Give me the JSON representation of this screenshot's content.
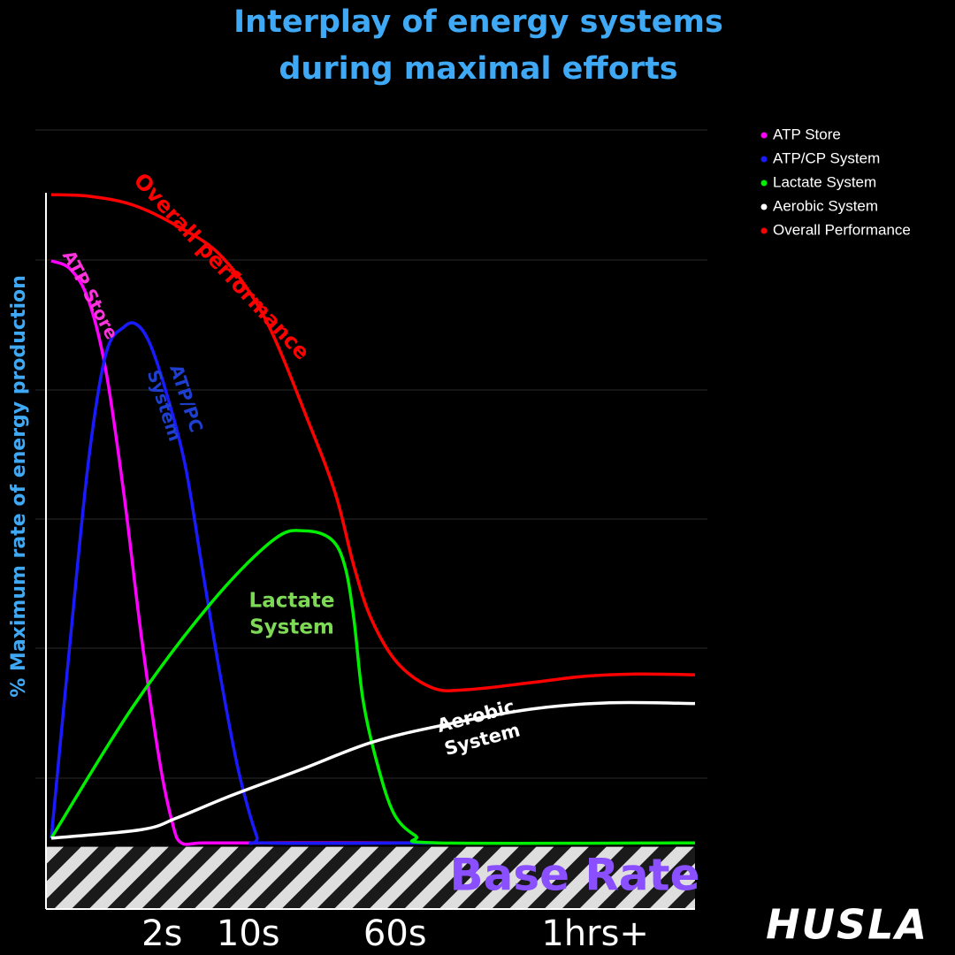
{
  "chart_data": {
    "type": "line",
    "title": [
      "Interplay of energy systems",
      "during maximal efforts"
    ],
    "y_label": "% Maximum rate of energy production",
    "xlim": [
      0,
      100
    ],
    "ylim": [
      0,
      100
    ],
    "xticks": [
      {
        "value": 17.2,
        "label": "2s"
      },
      {
        "value": 30.6,
        "label": "10s"
      },
      {
        "value": 53.4,
        "label": "60s"
      },
      {
        "value": 84.5,
        "label": "1hrs+"
      }
    ],
    "band": {
      "label": "Base Rate",
      "value": 8
    },
    "legend": "top-right",
    "series": [
      {
        "name": "ATP Store",
        "color": "#ff00ff",
        "x": [
          0,
          3.0,
          5.8,
          8.5,
          11.3,
          14.0,
          16.8,
          18.8,
          20.2,
          23.6,
          33.2,
          60.7
        ],
        "values": [
          83.3,
          82.2,
          78.2,
          69.1,
          53.2,
          35.0,
          19.1,
          11.1,
          8.5,
          8.5,
          8.5,
          8.5
        ]
      },
      {
        "name": "ATP/CP System",
        "color": "#1a1aff",
        "x": [
          0,
          3.0,
          5.8,
          8.5,
          11.3,
          13.3,
          15.4,
          18.1,
          20.9,
          23.6,
          26.4,
          29.1,
          31.9,
          33.2,
          60.7
        ],
        "values": [
          9.1,
          35.0,
          57.7,
          71.4,
          74.8,
          75.1,
          72.5,
          65.7,
          56.6,
          43.0,
          29.3,
          17.7,
          9.4,
          8.5,
          8.5
        ]
      },
      {
        "name": "Lactate System",
        "color": "#00ee00",
        "x": [
          0,
          12.6,
          25.0,
          34.6,
          39.4,
          43.5,
          45.6,
          47.0,
          48.4,
          50.5,
          53.2,
          56.6,
          60.0,
          100
        ],
        "values": [
          9.1,
          25.9,
          39.5,
          47.5,
          48.6,
          47.5,
          44.1,
          37.3,
          27.0,
          19.1,
          12.3,
          9.4,
          8.5,
          8.5
        ]
      },
      {
        "name": "Aerobic System",
        "color": "#ffffff",
        "x": [
          0,
          14.0,
          19.5,
          27.7,
          38.7,
          49.7,
          60.7,
          74.6,
          86.8,
          100
        ],
        "values": [
          9.1,
          10.2,
          11.7,
          14.5,
          17.9,
          21.4,
          23.6,
          25.7,
          26.5,
          26.4
        ]
      },
      {
        "name": "Overall Performance",
        "color": "#ff0000",
        "x": [
          0,
          5.8,
          12.6,
          19.5,
          26.4,
          33.2,
          40.1,
          44.2,
          47.0,
          49.7,
          53.8,
          59.3,
          64.8,
          74.6,
          82.7,
          90.9,
          100
        ],
        "values": [
          91.8,
          91.6,
          90.5,
          87.8,
          83.9,
          75.9,
          62.3,
          53.2,
          44.1,
          37.3,
          31.6,
          28.4,
          28.2,
          29.1,
          29.9,
          30.2,
          30.1
        ]
      }
    ],
    "annotations": [
      {
        "lines": [
          "Overall performance"
        ],
        "color": "#ff0000"
      },
      {
        "lines": [
          "ATP Store"
        ],
        "color": "#ff33dd"
      },
      {
        "lines": [
          "ATP/PC",
          "System"
        ],
        "color": "#1f3fd0"
      },
      {
        "lines": [
          "Lactate",
          "System"
        ],
        "color": "#7ed957"
      },
      {
        "lines": [
          "Aerobic",
          "System"
        ],
        "color": "#ffffff"
      }
    ],
    "logo": "HUSLA"
  }
}
